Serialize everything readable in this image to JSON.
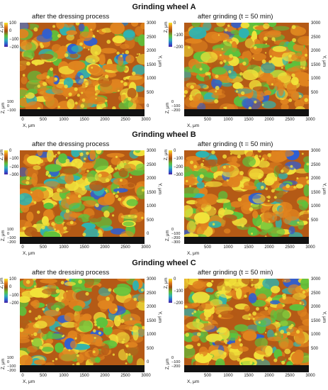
{
  "figure": {
    "rows": [
      {
        "title": "Grinding wheel A",
        "left": {
          "title": "after the dressing process",
          "colorbar": {
            "unit": "Z, μm",
            "ticks": [
              "100",
              "0",
              "−100",
              "−200"
            ]
          },
          "z_axis": {
            "label": "Z, μm",
            "ticks": [
              "100",
              "0",
              "−100"
            ]
          }
        },
        "right": {
          "title": "after grinding (t = 50 min)",
          "colorbar": {
            "unit": "Z, μm",
            "ticks": [
              "0",
              "−100",
              "−200"
            ]
          },
          "z_axis": {
            "label": "Z, μm",
            "ticks": [
              "0",
              "−100",
              "−200"
            ]
          }
        }
      },
      {
        "title": "Grinding wheel B",
        "left": {
          "title": "after the dressing process",
          "colorbar": {
            "unit": "Z, μm",
            "ticks": [
              "0",
              "−100",
              "−200",
              "−300"
            ]
          },
          "z_axis": {
            "label": "Z, μm",
            "ticks": [
              "100",
              "0",
              "−100",
              "−200"
            ]
          }
        },
        "right": {
          "title": "after grinding (t = 50 min)",
          "colorbar": {
            "unit": "Z, μm",
            "ticks": [
              "0",
              "−100",
              "−200",
              "−300"
            ]
          },
          "z_axis": {
            "label": "Z, μm",
            "ticks": [
              "0",
              "−100",
              "−200",
              "−300"
            ]
          }
        }
      },
      {
        "title": "Grinding wheel C",
        "left": {
          "title": "after the dressing process",
          "colorbar": {
            "unit": "Z, μm",
            "ticks": [
              "100",
              "0",
              "−100",
              "−200"
            ]
          },
          "z_axis": {
            "label": "Z, μm",
            "ticks": [
              "100",
              "0",
              "−100",
              "−200"
            ]
          }
        },
        "right": {
          "title": "after grinding (t = 50 min)",
          "colorbar": {
            "unit": "Z, μm",
            "ticks": [
              "0",
              "−100",
              "−200"
            ]
          },
          "z_axis": {
            "label": "Z, μm",
            "ticks": [
              "0",
              "−100",
              "−200"
            ]
          }
        }
      }
    ],
    "x_axis": {
      "label": "X, μm",
      "ticks": [
        "0",
        "500",
        "1000",
        "1500",
        "2000",
        "2500",
        "3000"
      ]
    },
    "y_axis": {
      "label": "Y, μm",
      "ticks": [
        "3000",
        "2500",
        "2000",
        "1500",
        "1000",
        "500",
        "0"
      ]
    },
    "y_axis_right": {
      "ticks": [
        "3000",
        "2500",
        "2000",
        "1500",
        "1000",
        "500"
      ]
    },
    "colors": {
      "peak": "#f2e33a",
      "high": "#e0841f",
      "mid": "#b45a16",
      "low": "#5cc23d",
      "lower": "#2fb3b0",
      "deep": "#2e5fd3",
      "base": "#111111"
    }
  }
}
